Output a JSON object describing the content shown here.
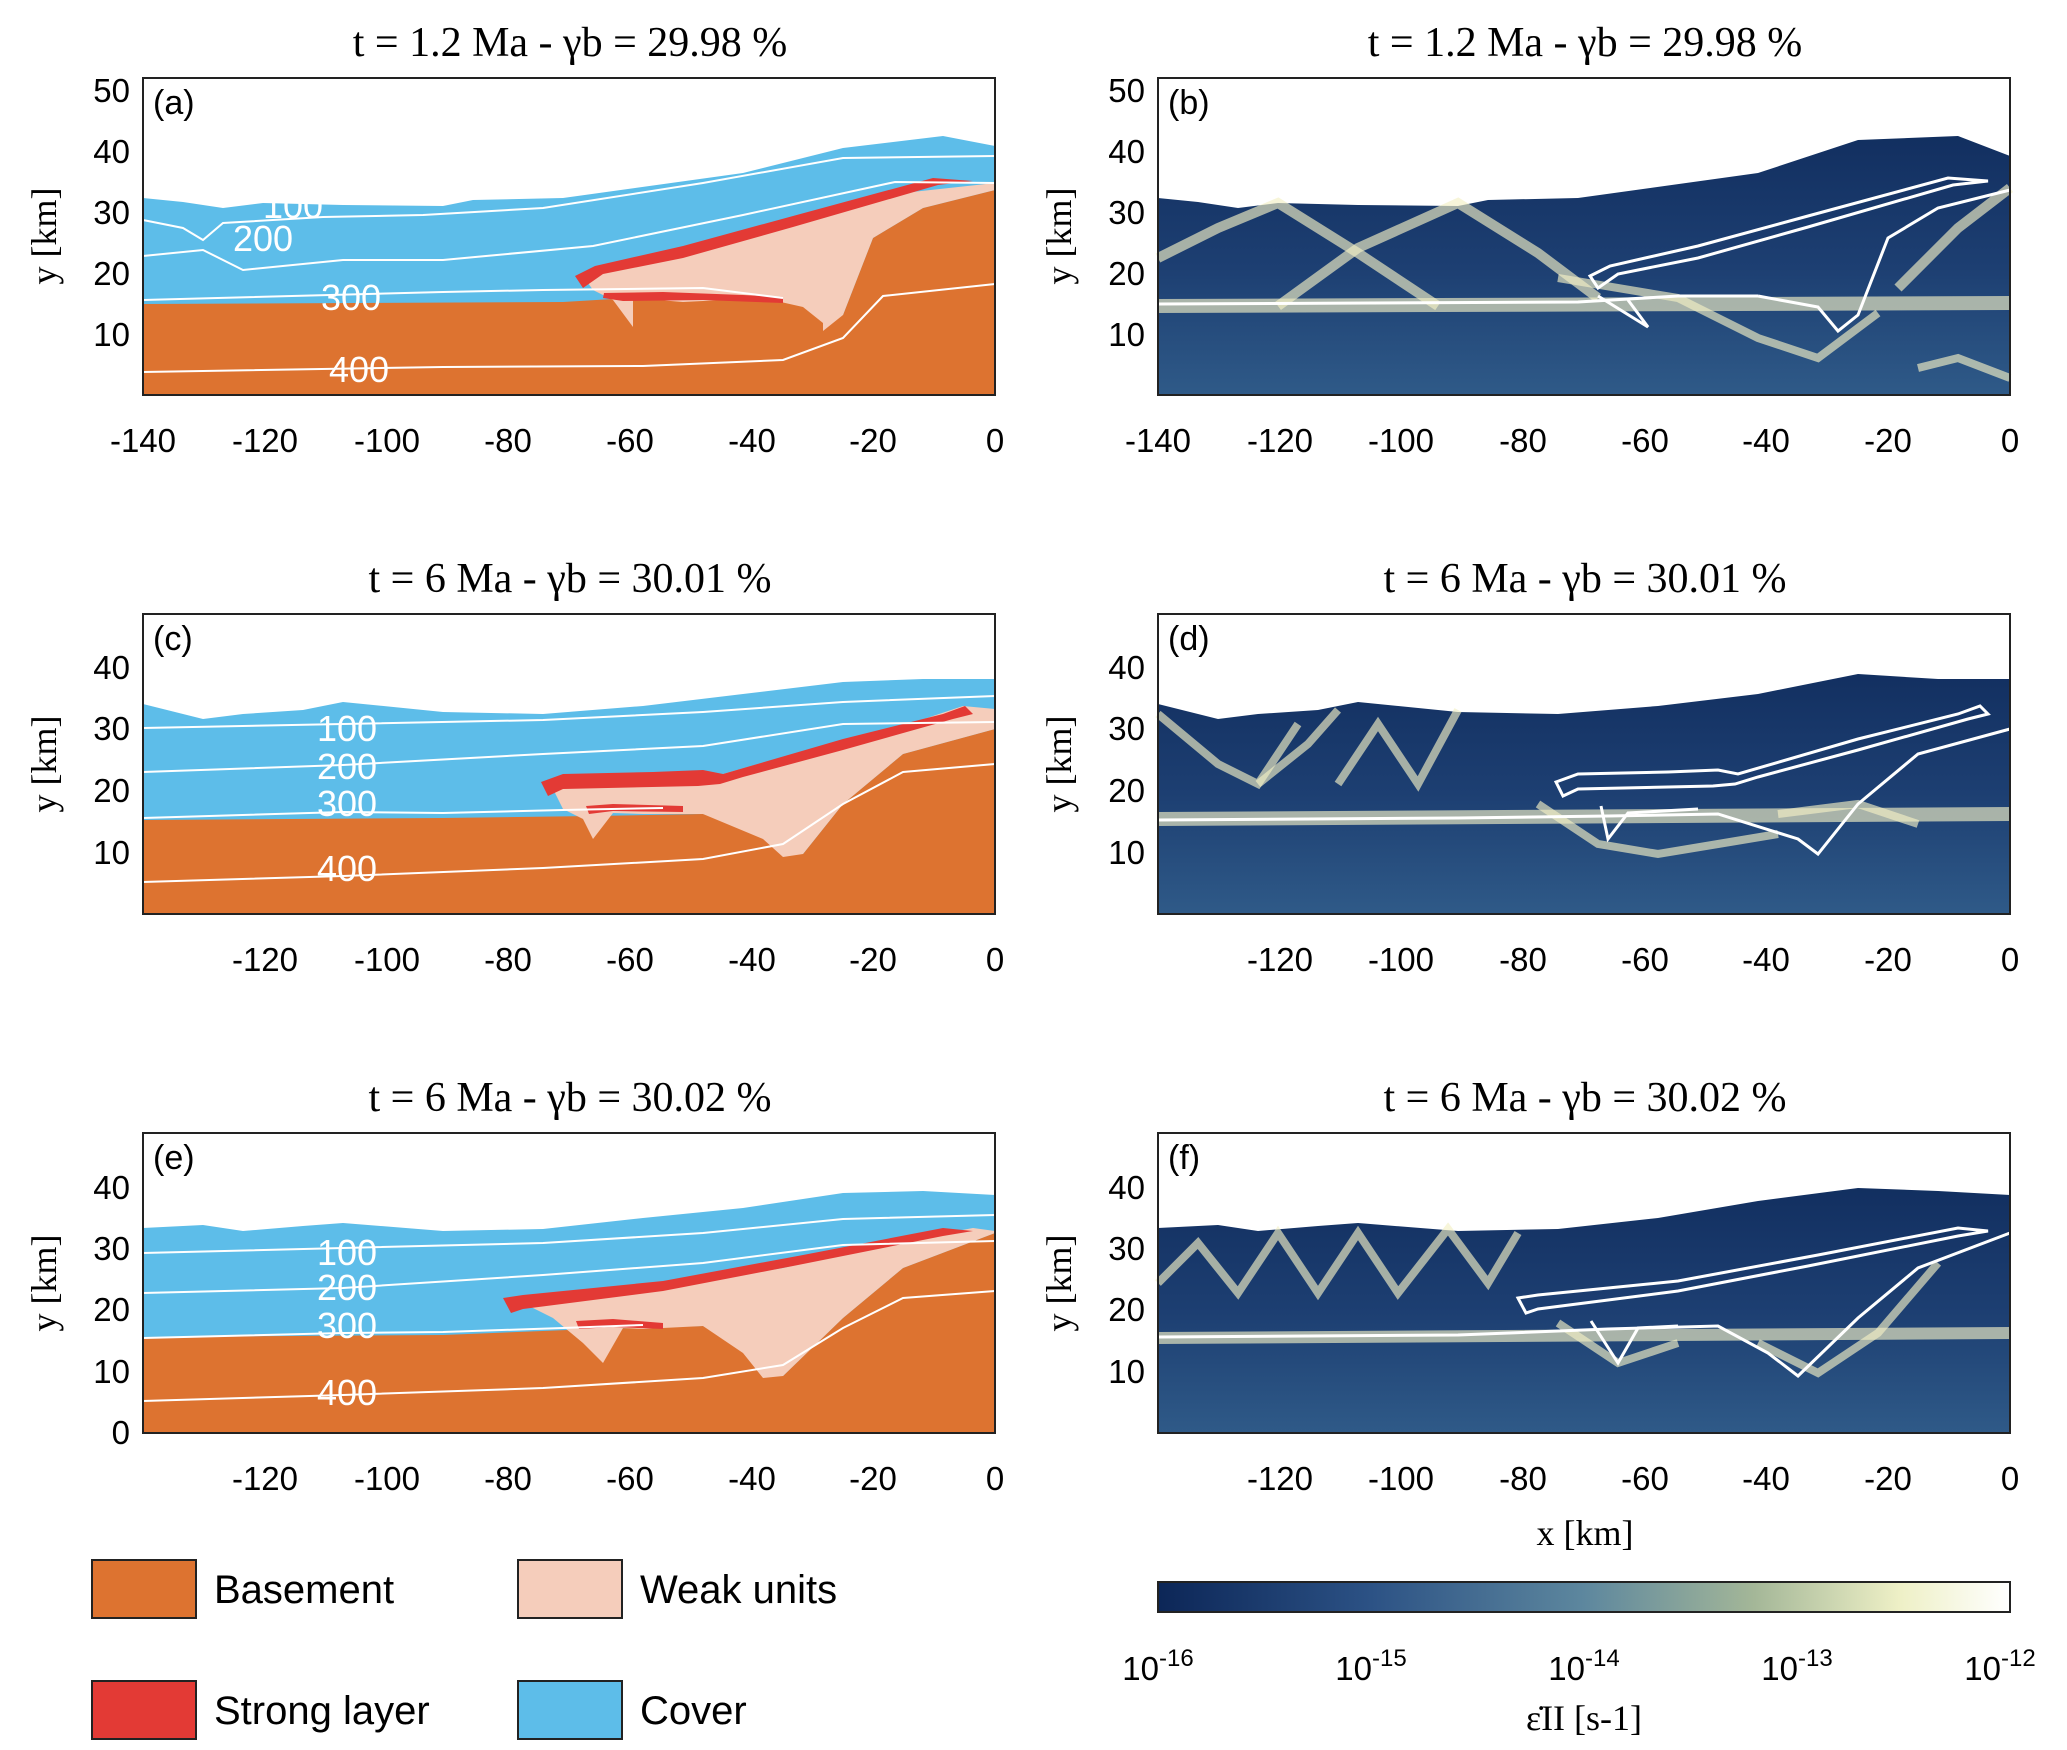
{
  "panels": [
    {
      "id": "a",
      "label": "(a)",
      "title": "t = 1.2 Ma - γb = 29.98 %",
      "kind": "phase",
      "xticks": [
        "-140",
        "-120",
        "-100",
        "-80",
        "-60",
        "-40",
        "-20",
        "0"
      ],
      "yticks": [
        "10",
        "20",
        "30",
        "40",
        "50"
      ],
      "ylabel": "y [km]",
      "contours": [
        "100",
        "200",
        "300",
        "400"
      ]
    },
    {
      "id": "b",
      "label": "(b)",
      "title": "t = 1.2 Ma - γb = 29.98 %",
      "kind": "strain",
      "xticks": [
        "-140",
        "-120",
        "-100",
        "-80",
        "-60",
        "-40",
        "-20",
        "0"
      ],
      "yticks": [
        "10",
        "20",
        "30",
        "40",
        "50"
      ],
      "ylabel": "y [km]"
    },
    {
      "id": "c",
      "label": "(c)",
      "title": "t = 6 Ma - γb = 30.01 %",
      "kind": "phase",
      "xticks": [
        "-120",
        "-100",
        "-80",
        "-60",
        "-40",
        "-20",
        "0"
      ],
      "yticks": [
        "10",
        "20",
        "30",
        "40"
      ],
      "ylabel": "y [km]",
      "contours": [
        "100",
        "200",
        "300",
        "400"
      ]
    },
    {
      "id": "d",
      "label": "(d)",
      "title": "t = 6 Ma - γb = 30.01 %",
      "kind": "strain",
      "xticks": [
        "-120",
        "-100",
        "-80",
        "-60",
        "-40",
        "-20",
        "0"
      ],
      "yticks": [
        "10",
        "20",
        "30",
        "40"
      ],
      "ylabel": "y [km]"
    },
    {
      "id": "e",
      "label": "(e)",
      "title": "t = 6 Ma - γb = 30.02 %",
      "kind": "phase",
      "xticks": [
        "-120",
        "-100",
        "-80",
        "-60",
        "-40",
        "-20",
        "0"
      ],
      "yticks": [
        "0",
        "10",
        "20",
        "30",
        "40"
      ],
      "ylabel": "y [km]",
      "contours": [
        "100",
        "200",
        "300",
        "400"
      ]
    },
    {
      "id": "f",
      "label": "(f)",
      "title": "t = 6 Ma - γb = 30.02 %",
      "kind": "strain",
      "xticks": [
        "-120",
        "-100",
        "-80",
        "-60",
        "-40",
        "-20",
        "0"
      ],
      "yticks": [
        "10",
        "20",
        "30",
        "40"
      ],
      "ylabel": "y [km]",
      "xlabel": "x [km]"
    }
  ],
  "legend": [
    {
      "label": "Basement",
      "color": "#dd7330"
    },
    {
      "label": "Weak units",
      "color": "#f5cdbb"
    },
    {
      "label": "Strong layer",
      "color": "#e33a35"
    },
    {
      "label": "Cover",
      "color": "#5dbde9"
    }
  ],
  "colorbar": {
    "ticks": [
      "10-16",
      "10-15",
      "10-14",
      "10-13",
      "10-12"
    ],
    "tick_base": "10",
    "tick_exponents": [
      "-16",
      "-15",
      "-14",
      "-13",
      "-12"
    ],
    "label": "ε̇II [s-1]",
    "scale": "log",
    "range": [
      1e-16,
      1e-12
    ],
    "colors": [
      "#0c2657",
      "#2c5285",
      "#5d879e",
      "#a4b798",
      "#eef0c6",
      "#ffffff"
    ]
  },
  "chart_data": [
    {
      "panel": "a",
      "type": "area",
      "x_range": [
        -140,
        0
      ],
      "y_range": [
        0,
        52
      ],
      "series": [
        {
          "name": "Basement"
        },
        {
          "name": "Weak units"
        },
        {
          "name": "Strong layer"
        },
        {
          "name": "Cover"
        }
      ],
      "isotherm_labels": [
        100,
        200,
        300,
        400
      ]
    },
    {
      "panel": "b",
      "type": "heatmap",
      "x_range": [
        -140,
        0
      ],
      "y_range": [
        0,
        52
      ],
      "scale": "log",
      "z_range": [
        1e-16,
        1e-12
      ]
    },
    {
      "panel": "c",
      "type": "area",
      "x_range": [
        -140,
        0
      ],
      "y_range": [
        0,
        49
      ],
      "series": [
        {
          "name": "Basement"
        },
        {
          "name": "Weak units"
        },
        {
          "name": "Strong layer"
        },
        {
          "name": "Cover"
        }
      ],
      "isotherm_labels": [
        100,
        200,
        300,
        400
      ]
    },
    {
      "panel": "d",
      "type": "heatmap",
      "x_range": [
        -140,
        0
      ],
      "y_range": [
        0,
        49
      ],
      "scale": "log",
      "z_range": [
        1e-16,
        1e-12
      ]
    },
    {
      "panel": "e",
      "type": "area",
      "x_range": [
        -140,
        0
      ],
      "y_range": [
        0,
        49
      ],
      "series": [
        {
          "name": "Basement"
        },
        {
          "name": "Weak units"
        },
        {
          "name": "Strong layer"
        },
        {
          "name": "Cover"
        }
      ],
      "isotherm_labels": [
        100,
        200,
        300,
        400
      ]
    },
    {
      "panel": "f",
      "type": "heatmap",
      "x_range": [
        -140,
        0
      ],
      "y_range": [
        0,
        49
      ],
      "scale": "log",
      "z_range": [
        1e-16,
        1e-12
      ]
    }
  ]
}
